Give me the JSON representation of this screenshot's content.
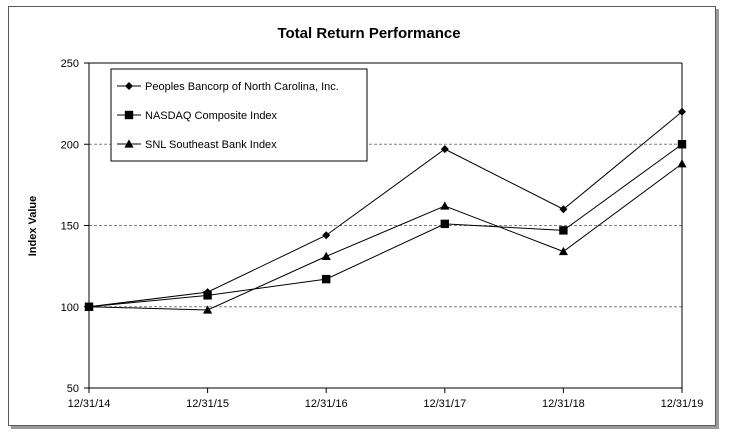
{
  "chart_data": {
    "type": "line",
    "title": "Total Return Performance",
    "xlabel": "",
    "ylabel": "Index Value",
    "categories": [
      "12/31/14",
      "12/31/15",
      "12/31/16",
      "12/31/17",
      "12/31/18",
      "12/31/19"
    ],
    "ylim": [
      50,
      250
    ],
    "yticks": [
      50,
      100,
      150,
      200,
      250
    ],
    "grid": true,
    "legend_position": "top-left",
    "series": [
      {
        "name": "Peoples Bancorp of North Carolina, Inc.",
        "marker": "diamond",
        "values": [
          100,
          109,
          144,
          197,
          160,
          220
        ]
      },
      {
        "name": "NASDAQ Composite Index",
        "marker": "square",
        "values": [
          100,
          107,
          117,
          151,
          147,
          200
        ]
      },
      {
        "name": "SNL Southeast Bank Index",
        "marker": "triangle",
        "values": [
          100,
          98,
          131,
          162,
          134,
          188
        ]
      }
    ],
    "colors": {
      "line": "#000000",
      "grid": "#808080",
      "frame": "#5a5a5a"
    }
  }
}
